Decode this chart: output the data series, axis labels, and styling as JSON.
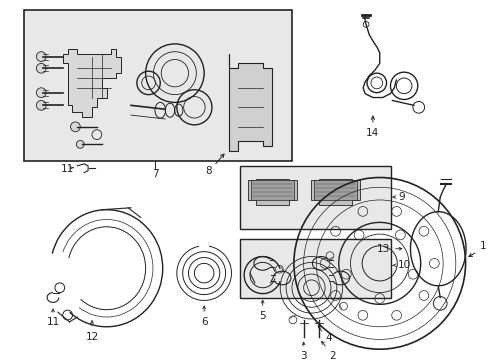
{
  "bg_color": "#ffffff",
  "line_color": "#222222",
  "box_gray": "#e8e8e8",
  "figsize": [
    4.89,
    3.6
  ],
  "dpi": 100
}
